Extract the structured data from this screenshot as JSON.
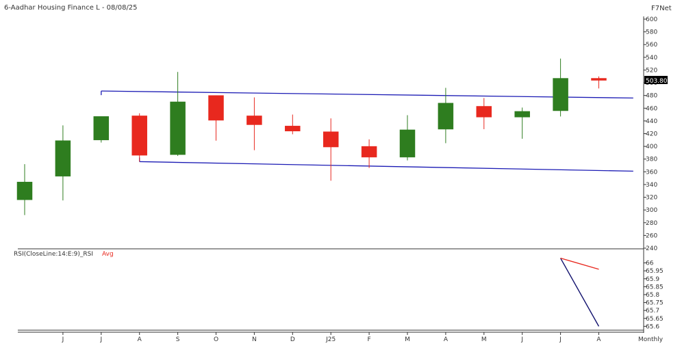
{
  "header": {
    "title": "6-Aadhar Housing Finance L - 08/08/25",
    "brand": "F7Net",
    "period": "Monthly",
    "last_price": "503.80"
  },
  "rsi_legend": {
    "label": "RSI(CloseLine:14:E:9)_RSI",
    "avg_label": "Avg"
  },
  "colors": {
    "up": "#2e7d1f",
    "down": "#e8281e",
    "trend": "#1a1ab4",
    "rsi_line": "#12126e",
    "rsi_avg": "#e8281e"
  },
  "chart_data": [
    {
      "type": "candlestick",
      "title": "6-Aadhar Housing Finance L - 08/08/25",
      "ylim": [
        240,
        600
      ],
      "yticks": [
        240,
        260,
        280,
        300,
        320,
        340,
        360,
        380,
        400,
        420,
        440,
        460,
        480,
        500,
        520,
        540,
        560,
        580,
        600
      ],
      "categories": [
        "",
        "J",
        "J",
        "A",
        "S",
        "O",
        "N",
        "D",
        "J25",
        "F",
        "M",
        "A",
        "M",
        "J",
        "J",
        "A"
      ],
      "candles": [
        {
          "o": 316,
          "h": 372,
          "l": 292,
          "c": 344
        },
        {
          "o": 353,
          "h": 433,
          "l": 315,
          "c": 409
        },
        {
          "o": 410,
          "h": 447,
          "l": 406,
          "c": 447
        },
        {
          "o": 448,
          "h": 452,
          "l": 376,
          "c": 386
        },
        {
          "o": 387,
          "h": 517,
          "l": 385,
          "c": 470
        },
        {
          "o": 480,
          "h": 480,
          "l": 409,
          "c": 441
        },
        {
          "o": 448,
          "h": 477,
          "l": 394,
          "c": 434
        },
        {
          "o": 432,
          "h": 450,
          "l": 419,
          "c": 424
        },
        {
          "o": 423,
          "h": 444,
          "l": 346,
          "c": 399
        },
        {
          "o": 400,
          "h": 411,
          "l": 366,
          "c": 383
        },
        {
          "o": 383,
          "h": 449,
          "l": 378,
          "c": 426
        },
        {
          "o": 427,
          "h": 492,
          "l": 405,
          "c": 468
        },
        {
          "o": 463,
          "h": 476,
          "l": 427,
          "c": 446
        },
        {
          "o": 446,
          "h": 461,
          "l": 412,
          "c": 455
        },
        {
          "o": 456,
          "h": 538,
          "l": 447,
          "c": 507
        },
        {
          "o": 507,
          "h": 510,
          "l": 491,
          "c": 503.8
        }
      ],
      "trendlines": [
        {
          "from": [
            2,
            487
          ],
          "to": [
            15.9,
            476
          ]
        },
        {
          "from": [
            3,
            376
          ],
          "to": [
            15.9,
            361
          ]
        }
      ]
    },
    {
      "type": "line",
      "ylim": [
        65.58,
        66.05
      ],
      "yticks": [
        65.6,
        65.65,
        65.7,
        65.75,
        65.8,
        65.85,
        65.9,
        65.95,
        66
      ],
      "series": [
        {
          "name": "RSI",
          "points": [
            [
              14,
              66.03
            ],
            [
              15,
              65.6
            ]
          ]
        },
        {
          "name": "Avg",
          "points": [
            [
              14,
              66.03
            ],
            [
              15,
              65.96
            ]
          ]
        }
      ]
    }
  ]
}
